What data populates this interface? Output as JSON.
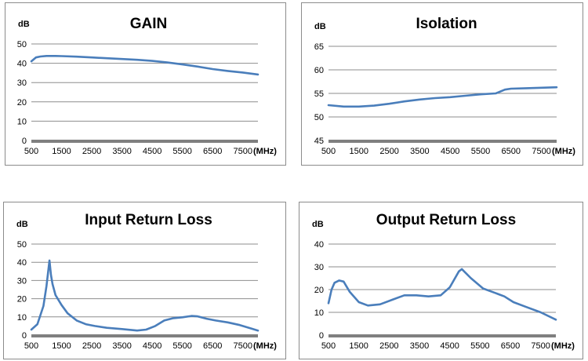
{
  "chart_data": [
    {
      "type": "line",
      "title": "GAIN",
      "ylabel": "dB",
      "xlabel": "(MHz)",
      "x_ticks": [
        "500",
        "1500",
        "2500",
        "3500",
        "4500",
        "5500",
        "6500",
        "7500"
      ],
      "y_ticks": [
        "0",
        "10",
        "20",
        "30",
        "40",
        "50"
      ],
      "xlim": [
        500,
        8000
      ],
      "ylim": [
        0,
        50
      ],
      "grid": true,
      "series": [
        {
          "x": [
            500,
            650,
            800,
            1000,
            1300,
            1500,
            2000,
            2500,
            3000,
            3500,
            4000,
            4500,
            5000,
            5500,
            6000,
            6500,
            7000,
            7500,
            7800,
            8000
          ],
          "y": [
            41,
            43,
            43.5,
            43.8,
            43.8,
            43.7,
            43.4,
            43,
            42.6,
            42.2,
            41.8,
            41.2,
            40.4,
            39.4,
            38.3,
            37,
            36,
            35.2,
            34.6,
            34.2
          ]
        }
      ]
    },
    {
      "type": "line",
      "title": "Isolation",
      "ylabel": "dB",
      "xlabel": "(MHz)",
      "x_ticks": [
        "500",
        "1500",
        "2500",
        "3500",
        "4500",
        "5500",
        "6500",
        "7500"
      ],
      "y_ticks": [
        "45",
        "50",
        "55",
        "60",
        "65"
      ],
      "xlim": [
        500,
        8000
      ],
      "ylim": [
        45,
        65
      ],
      "grid": true,
      "series": [
        {
          "x": [
            500,
            1000,
            1500,
            2000,
            2500,
            3000,
            3500,
            4000,
            4500,
            5000,
            5500,
            6000,
            6300,
            6500,
            7000,
            7500,
            8000
          ],
          "y": [
            52.5,
            52.2,
            52.2,
            52.4,
            52.8,
            53.3,
            53.7,
            54,
            54.2,
            54.5,
            54.8,
            55,
            55.8,
            56,
            56.1,
            56.2,
            56.3
          ]
        }
      ]
    },
    {
      "type": "line",
      "title": "Input Return Loss",
      "ylabel": "dB",
      "xlabel": "(MHz)",
      "x_ticks": [
        "500",
        "1500",
        "2500",
        "3500",
        "4500",
        "5500",
        "6500",
        "7500"
      ],
      "y_ticks": [
        "0",
        "10",
        "20",
        "30",
        "40",
        "50"
      ],
      "xlim": [
        500,
        8000
      ],
      "ylim": [
        0,
        50
      ],
      "grid": true,
      "series": [
        {
          "x": [
            500,
            700,
            900,
            1000,
            1100,
            1150,
            1200,
            1300,
            1500,
            1700,
            2000,
            2300,
            2600,
            3000,
            3500,
            4000,
            4300,
            4600,
            4900,
            5200,
            5500,
            5800,
            6000,
            6300,
            6600,
            7000,
            7400,
            7800,
            8000
          ],
          "y": [
            3,
            6,
            16,
            27,
            41,
            33,
            28,
            22,
            16.5,
            12,
            8,
            6,
            5,
            4,
            3.3,
            2.5,
            3,
            5,
            8,
            9.3,
            9.8,
            10.5,
            10.3,
            9,
            8,
            7,
            5.5,
            3.5,
            2.5
          ]
        }
      ]
    },
    {
      "type": "line",
      "title": "Output Return Loss",
      "ylabel": "dB",
      "xlabel": "(MHz)",
      "x_ticks": [
        "500",
        "1500",
        "2500",
        "3500",
        "4500",
        "5500",
        "6500",
        "7500"
      ],
      "y_ticks": [
        "0",
        "10",
        "20",
        "30",
        "40"
      ],
      "xlim": [
        500,
        8000
      ],
      "ylim": [
        0,
        40
      ],
      "grid": true,
      "series": [
        {
          "x": [
            500,
            600,
            700,
            850,
            1000,
            1200,
            1500,
            1800,
            2200,
            2600,
            3000,
            3400,
            3800,
            4200,
            4500,
            4800,
            4900,
            5200,
            5600,
            6000,
            6300,
            6600,
            7000,
            7500,
            8000
          ],
          "y": [
            14,
            20,
            23,
            24,
            23.5,
            19,
            14.5,
            13,
            13.5,
            15.5,
            17.5,
            17.5,
            17,
            17.5,
            21,
            28,
            29,
            25,
            20.5,
            18.5,
            17,
            14.5,
            12.5,
            10,
            6.8
          ]
        }
      ]
    }
  ]
}
